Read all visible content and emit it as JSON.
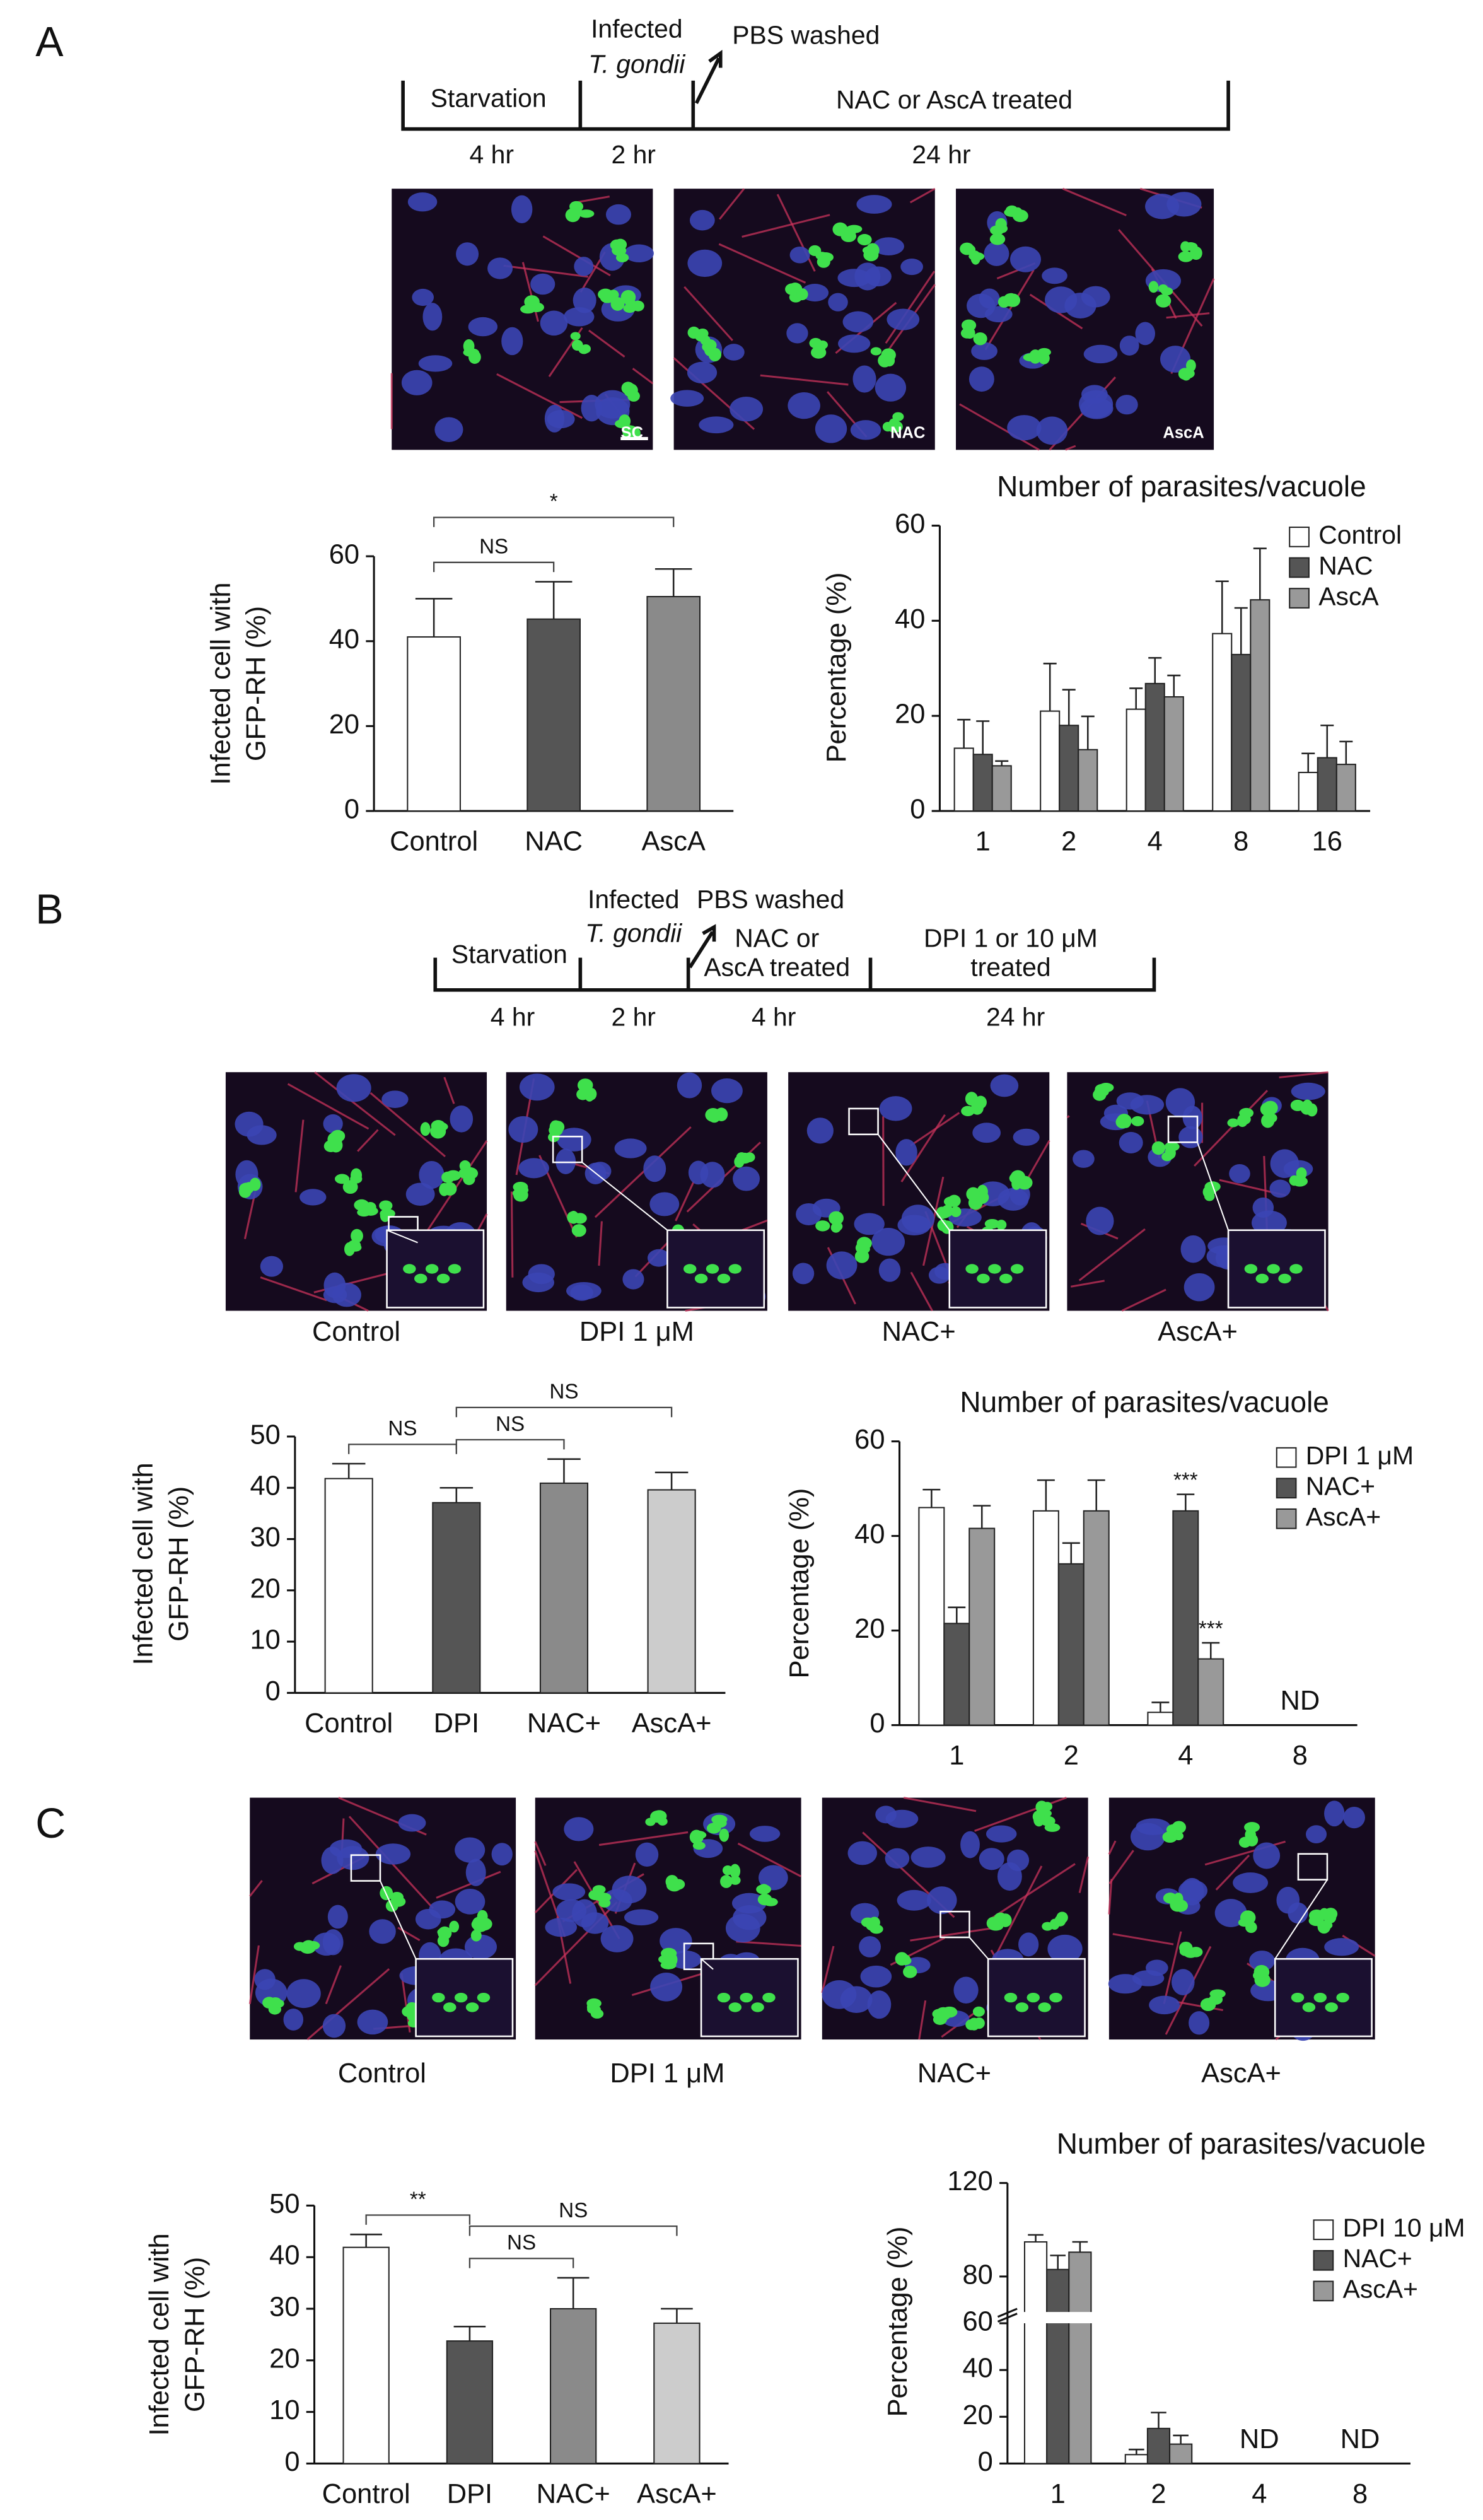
{
  "panels": {
    "A": {
      "letter": "A",
      "timeline": {
        "starvation": "Starvation",
        "infected": "Infected",
        "organism": "T. gondii",
        "washed": "PBS washed",
        "treated": "NAC or AscA treated",
        "durations": [
          "4 hr",
          "2 hr",
          "24 hr"
        ]
      },
      "image_labels": [
        "SC",
        "NAC",
        "AscA"
      ]
    },
    "B": {
      "letter": "B",
      "timeline": {
        "starvation": "Starvation",
        "infected": "Infected",
        "organism": "T. gondii",
        "washed": "PBS washed",
        "treated": [
          "NAC or",
          "AscA treated"
        ],
        "dpi": [
          "DPI 1 or 10 μM",
          "treated"
        ],
        "durations": [
          "4 hr",
          "2 hr",
          "4 hr",
          "24 hr"
        ]
      },
      "image_captions": [
        "Control",
        "DPI 1 μM",
        "NAC+",
        "AscA+"
      ]
    },
    "C": {
      "letter": "C",
      "image_captions": [
        "Control",
        "DPI 1 μM",
        "NAC+",
        "AscA+"
      ]
    }
  },
  "chart_data": [
    {
      "type": "bar",
      "ylabel": [
        "Infected cell with",
        "GFP-RH (%)"
      ],
      "categories": [
        "Control",
        "NAC",
        "AscA"
      ],
      "values": [
        41,
        45.2,
        50.5
      ],
      "errors": [
        9,
        8.8,
        6.5
      ],
      "colors": [
        "#ffffff",
        "#555555",
        "#8a8a8a"
      ],
      "ylim": [
        0,
        60
      ],
      "yticks": [
        0,
        20,
        40,
        60
      ],
      "annotations": [
        {
          "text": "NS",
          "between": [
            "Control",
            "NAC"
          ]
        },
        {
          "text": "*",
          "between": [
            "Control",
            "AscA"
          ]
        }
      ]
    },
    {
      "type": "bar",
      "title": "Number of parasites/vacuole",
      "ylabel": [
        "Percentage (%)"
      ],
      "categories": [
        "1",
        "2",
        "4",
        "8",
        "16"
      ],
      "series": [
        {
          "name": "Control",
          "color": "#ffffff",
          "values": [
            13.2,
            21,
            21.4,
            37.3,
            8.1
          ],
          "errors": [
            6,
            10,
            4.4,
            11,
            4
          ]
        },
        {
          "name": "NAC",
          "color": "#555555",
          "values": [
            11.9,
            18,
            26.8,
            32.9,
            11.2
          ],
          "errors": [
            7,
            7.5,
            5.4,
            9.8,
            6.8
          ]
        },
        {
          "name": "AscA",
          "color": "#999999",
          "values": [
            9.5,
            12.9,
            24,
            44.4,
            9.8
          ],
          "errors": [
            1,
            7,
            4.5,
            10.8,
            4.8
          ]
        }
      ],
      "ylim": [
        0,
        60
      ],
      "yticks": [
        0,
        20,
        40,
        60
      ],
      "legend": "top-right",
      "annotations": []
    },
    {
      "type": "bar",
      "ylabel": [
        "Infected cell with",
        "GFP-RH (%)"
      ],
      "categories": [
        "Control",
        "DPI",
        "NAC+",
        "AscA+"
      ],
      "values": [
        41.8,
        37.1,
        40.9,
        39.6
      ],
      "errors": [
        2.9,
        2.9,
        4.7,
        3.4
      ],
      "colors": [
        "#ffffff",
        "#555555",
        "#8a8a8a",
        "#cccccc"
      ],
      "ylim": [
        0,
        50
      ],
      "yticks": [
        0,
        10,
        20,
        30,
        40,
        50
      ],
      "annotations": [
        {
          "text": "NS",
          "between": [
            "Control",
            "DPI"
          ]
        },
        {
          "text": "NS",
          "between": [
            "DPI",
            "NAC+"
          ]
        },
        {
          "text": "NS",
          "between": [
            "DPI",
            "AscA+"
          ]
        }
      ]
    },
    {
      "type": "bar",
      "title": "Number of parasites/vacuole",
      "ylabel": [
        "Percentage (%)"
      ],
      "categories": [
        "1",
        "2",
        "4",
        "8"
      ],
      "series": [
        {
          "name": "DPI 1 μM",
          "color": "#ffffff",
          "values": [
            46,
            45.3,
            2.7,
            null
          ],
          "errors": [
            3.8,
            6.5,
            2.1,
            null
          ]
        },
        {
          "name": "NAC+",
          "color": "#555555",
          "values": [
            21.5,
            34.1,
            45.3,
            null
          ],
          "errors": [
            3.4,
            4.4,
            3.5,
            null
          ]
        },
        {
          "name": "AscA+",
          "color": "#999999",
          "values": [
            41.6,
            45.3,
            14,
            null
          ],
          "errors": [
            4.8,
            6.5,
            3.4,
            null
          ]
        }
      ],
      "ylim": [
        0,
        60
      ],
      "yticks": [
        0,
        20,
        40,
        60
      ],
      "legend": "top-right",
      "annotations": [
        {
          "text": "***",
          "series": "NAC+",
          "category": "4"
        },
        {
          "text": "***",
          "series": "AscA+",
          "category": "4"
        },
        {
          "text": "ND",
          "category": "8"
        }
      ]
    },
    {
      "type": "bar",
      "ylabel": [
        "Infected cell with",
        "GFP-RH (%)"
      ],
      "categories": [
        "Control",
        "DPI",
        "NAC+",
        "AscA+"
      ],
      "values": [
        41.9,
        23.75,
        30,
        27.2
      ],
      "errors": [
        2.5,
        2.8,
        6,
        2.8
      ],
      "colors": [
        "#ffffff",
        "#555555",
        "#8a8a8a",
        "#cccccc"
      ],
      "ylim": [
        0,
        50
      ],
      "yticks": [
        0,
        10,
        20,
        30,
        40,
        50
      ],
      "annotations": [
        {
          "text": "**",
          "between": [
            "Control",
            "DPI"
          ]
        },
        {
          "text": "NS",
          "between": [
            "DPI",
            "NAC+"
          ]
        },
        {
          "text": "NS",
          "between": [
            "DPI",
            "AscA+"
          ]
        }
      ]
    },
    {
      "type": "bar",
      "title": "Number of parasites/vacuole",
      "ylabel": [
        "Percentage (%)"
      ],
      "categories": [
        "1",
        "2",
        "4",
        "8"
      ],
      "series": [
        {
          "name": "DPI 10 μM",
          "color": "#ffffff",
          "values": [
            94.8,
            3.8,
            null,
            null
          ],
          "errors": [
            3,
            2.2,
            null,
            null
          ]
        },
        {
          "name": "NAC+",
          "color": "#555555",
          "values": [
            83,
            15,
            null,
            null
          ],
          "errors": [
            6,
            6.8,
            null,
            null
          ]
        },
        {
          "name": "AscA+",
          "color": "#999999",
          "values": [
            90.4,
            8.3,
            null,
            null
          ],
          "errors": [
            4.4,
            3.7,
            null,
            null
          ]
        }
      ],
      "ylim": [
        0,
        120
      ],
      "yticks": [
        0,
        20,
        40,
        60,
        80,
        120
      ],
      "axis_break": 60,
      "legend": "top-right",
      "annotations": [
        {
          "text": "ND",
          "category": "4"
        },
        {
          "text": "ND",
          "category": "8"
        }
      ]
    }
  ]
}
